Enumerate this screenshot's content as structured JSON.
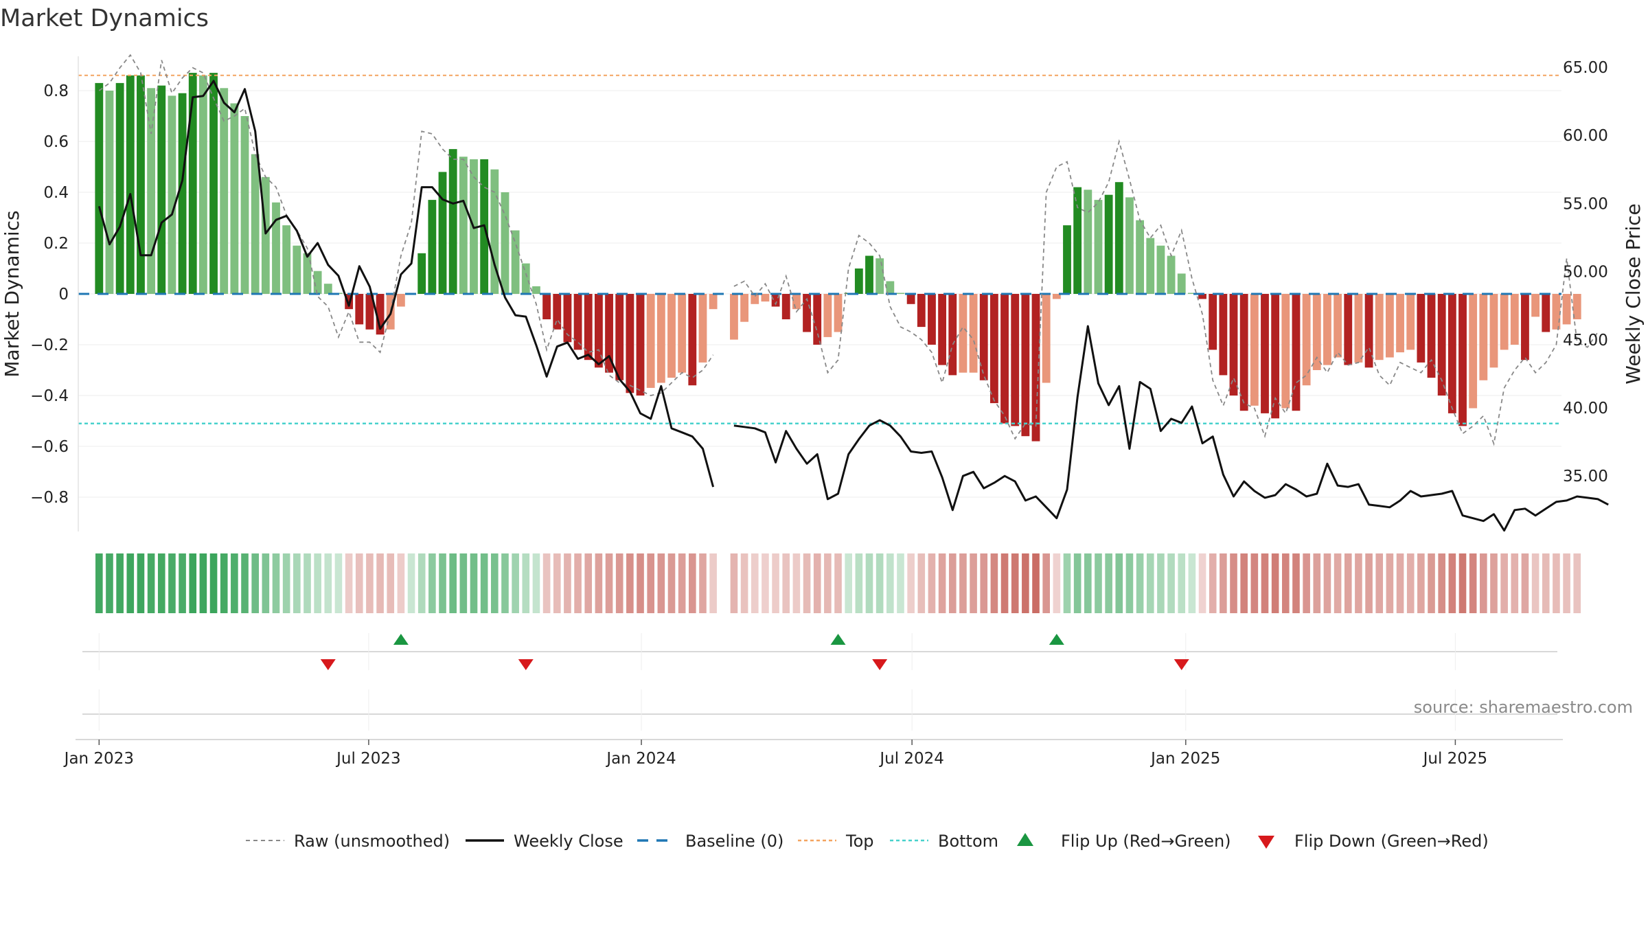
{
  "title": "Market Dynamics",
  "source": "source: sharemaestro.com",
  "colors": {
    "strong_green": "#228b22",
    "light_green": "#7fbf7f",
    "strong_red": "#b22222",
    "light_red": "#e9967a",
    "close_line": "#111111",
    "raw_line": "#888888",
    "baseline": "#1f77b4",
    "top": "#f4a460",
    "bottom": "#48d1cc",
    "flip_up": "#1a9641",
    "flip_down": "#d7191c"
  },
  "legend": {
    "raw": "Raw (unsmoothed)",
    "close": "Weekly Close",
    "baseline": "Baseline (0)",
    "top": "Top",
    "bottom": "Bottom",
    "flip_up": "Flip Up (Red→Green)",
    "flip_down": "Flip Down (Green→Red)"
  },
  "chart_data": {
    "type": "bar",
    "title": "Market Dynamics",
    "ylabel": "Market Dynamics",
    "ylabel_right": "Weekly Close Price",
    "ylim": [
      -0.94,
      0.94
    ],
    "ylim_right": [
      31.0,
      67.3
    ],
    "yticks_left": [
      0.8,
      0.6,
      0.4,
      0.2,
      0,
      -0.2,
      -0.4,
      -0.6,
      -0.8
    ],
    "yticks_left_labels": [
      "0.8",
      "0.6",
      "0.4",
      "0.2",
      "0",
      "−0.2",
      "−0.4",
      "−0.6",
      "−0.8"
    ],
    "yticks_right": [
      65,
      60,
      55,
      50,
      45,
      40,
      35
    ],
    "yticks_right_labels": [
      "65.00",
      "60.00",
      "55.00",
      "50.00",
      "45.00",
      "40.00",
      "35.00"
    ],
    "x_start_week": -2,
    "x_end_week": 140.5,
    "xticks": [
      {
        "label": "Jan 2023",
        "week": 0
      },
      {
        "label": "Jul 2023",
        "week": 25.9
      },
      {
        "label": "Jan 2024",
        "week": 52.1
      },
      {
        "label": "Jul 2024",
        "week": 78.1
      },
      {
        "label": "Jan 2025",
        "week": 104.4
      },
      {
        "label": "Jul 2025",
        "week": 130.3
      }
    ],
    "top_level": 0.86,
    "bottom_level": -0.51,
    "missing_weeks": [
      60
    ],
    "dynamics": [
      0.83,
      0.8,
      0.83,
      0.86,
      0.86,
      0.81,
      0.82,
      0.78,
      0.79,
      0.87,
      0.86,
      0.87,
      0.81,
      0.75,
      0.7,
      0.55,
      0.46,
      0.36,
      0.27,
      0.19,
      0.16,
      0.09,
      0.04,
      0.0,
      -0.06,
      -0.12,
      -0.14,
      -0.16,
      -0.14,
      -0.05,
      0.0,
      0.16,
      0.37,
      0.48,
      0.57,
      0.54,
      0.53,
      0.53,
      0.49,
      0.4,
      0.25,
      0.12,
      0.03,
      -0.1,
      -0.14,
      -0.19,
      -0.22,
      -0.26,
      -0.29,
      -0.31,
      -0.34,
      -0.39,
      -0.4,
      -0.37,
      -0.35,
      -0.33,
      -0.31,
      -0.36,
      -0.27,
      -0.06,
      null,
      -0.18,
      -0.11,
      -0.04,
      -0.03,
      -0.05,
      -0.1,
      -0.06,
      -0.15,
      -0.2,
      -0.17,
      -0.15,
      0.0,
      0.1,
      0.15,
      0.14,
      0.05,
      0.0,
      -0.04,
      -0.13,
      -0.2,
      -0.28,
      -0.32,
      -0.31,
      -0.31,
      -0.34,
      -0.43,
      -0.51,
      -0.52,
      -0.56,
      -0.58,
      -0.35,
      -0.02,
      0.27,
      0.42,
      0.41,
      0.37,
      0.39,
      0.44,
      0.38,
      0.29,
      0.22,
      0.19,
      0.15,
      0.08,
      0.0,
      -0.02,
      -0.22,
      -0.32,
      -0.4,
      -0.46,
      -0.44,
      -0.47,
      -0.49,
      -0.45,
      -0.46,
      -0.36,
      -0.3,
      -0.28,
      -0.25,
      -0.28,
      -0.27,
      -0.29,
      -0.26,
      -0.25,
      -0.23,
      -0.22,
      -0.27,
      -0.33,
      -0.4,
      -0.47,
      -0.52,
      -0.45,
      -0.34,
      -0.29,
      -0.22,
      -0.2,
      -0.26,
      -0.09,
      -0.15,
      -0.14,
      -0.12,
      -0.1
    ],
    "raw": [
      0.8,
      0.83,
      0.89,
      0.94,
      0.87,
      0.63,
      0.92,
      0.79,
      0.85,
      0.89,
      0.87,
      0.77,
      0.68,
      0.7,
      0.73,
      0.55,
      0.46,
      0.42,
      0.31,
      0.25,
      0.18,
      -0.01,
      -0.05,
      -0.17,
      -0.07,
      -0.19,
      -0.19,
      -0.23,
      -0.07,
      0.15,
      0.28,
      0.64,
      0.63,
      0.57,
      0.53,
      0.53,
      0.46,
      0.42,
      0.4,
      0.31,
      0.2,
      0.08,
      -0.04,
      -0.22,
      -0.1,
      -0.16,
      -0.19,
      -0.23,
      -0.22,
      -0.32,
      -0.35,
      -0.36,
      -0.38,
      -0.4,
      -0.39,
      -0.35,
      -0.31,
      -0.33,
      -0.3,
      -0.24,
      null,
      0.03,
      0.05,
      -0.01,
      0.04,
      -0.04,
      0.07,
      -0.07,
      -0.02,
      -0.15,
      -0.31,
      -0.26,
      0.1,
      0.23,
      0.2,
      0.15,
      -0.05,
      -0.13,
      -0.15,
      -0.18,
      -0.23,
      -0.35,
      -0.2,
      -0.13,
      -0.18,
      -0.32,
      -0.42,
      -0.48,
      -0.57,
      -0.51,
      -0.52,
      0.4,
      0.5,
      0.52,
      0.34,
      0.32,
      0.36,
      0.44,
      0.6,
      0.45,
      0.29,
      0.22,
      0.27,
      0.15,
      0.25,
      0.06,
      -0.08,
      -0.34,
      -0.44,
      -0.33,
      -0.43,
      -0.45,
      -0.56,
      -0.41,
      -0.47,
      -0.35,
      -0.32,
      -0.25,
      -0.31,
      -0.23,
      -0.28,
      -0.27,
      -0.21,
      -0.32,
      -0.36,
      -0.27,
      -0.29,
      -0.31,
      -0.26,
      -0.34,
      -0.45,
      -0.55,
      -0.52,
      -0.48,
      -0.59,
      -0.37,
      -0.3,
      -0.25,
      -0.31,
      -0.27,
      -0.2,
      0.14,
      -0.19,
      -0.21,
      -0.15
    ],
    "close": [
      54.8,
      52.0,
      53.3,
      55.7,
      51.2,
      51.2,
      53.6,
      54.2,
      56.7,
      62.8,
      62.9,
      64.0,
      62.4,
      61.7,
      63.4,
      60.3,
      52.8,
      53.8,
      54.1,
      53.0,
      51.1,
      52.1,
      50.5,
      49.7,
      47.5,
      50.4,
      48.9,
      45.8,
      46.9,
      49.8,
      50.6,
      56.2,
      56.2,
      55.3,
      55.0,
      55.2,
      53.2,
      53.4,
      50.5,
      48.1,
      46.8,
      46.7,
      44.6,
      42.3,
      44.5,
      44.8,
      43.6,
      43.9,
      43.2,
      43.8,
      42.1,
      41.2,
      39.6,
      39.2,
      41.6,
      38.5,
      38.2,
      37.9,
      37.0,
      34.2,
      null,
      38.7,
      38.6,
      38.5,
      38.2,
      36.0,
      38.3,
      37.0,
      35.9,
      36.6,
      33.3,
      33.7,
      36.6,
      37.7,
      38.7,
      39.1,
      38.7,
      37.9,
      36.8,
      36.7,
      36.8,
      34.9,
      32.5,
      35.0,
      35.3,
      34.1,
      34.5,
      35.0,
      34.6,
      33.2,
      33.5,
      32.7,
      31.9,
      34.0,
      40.8,
      46.0,
      41.8,
      40.2,
      41.6,
      37.0,
      41.9,
      41.4,
      38.3,
      39.2,
      38.9,
      40.1,
      37.4,
      37.9,
      35.1,
      33.5,
      34.6,
      33.9,
      33.4,
      33.6,
      34.4,
      34.0,
      33.5,
      33.7,
      35.9,
      34.3,
      34.2,
      34.4,
      32.9,
      32.8,
      32.7,
      33.2,
      33.9,
      33.5,
      33.6,
      33.7,
      33.9,
      32.1,
      31.9,
      31.7,
      32.2,
      31.0,
      32.5,
      32.6,
      32.1,
      32.6,
      33.1,
      33.2,
      33.5,
      33.4,
      33.3,
      32.9
    ],
    "flip_up_weeks": [
      29,
      71,
      92
    ],
    "flip_down_weeks": [
      22,
      41,
      75,
      104
    ]
  }
}
